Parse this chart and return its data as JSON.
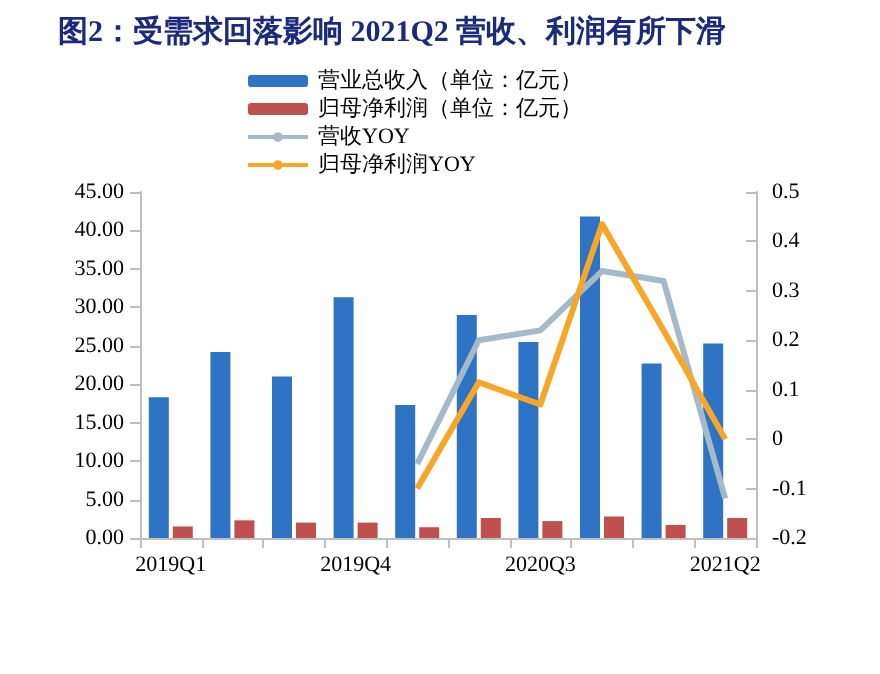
{
  "chart_data": {
    "type": "bar",
    "title": "图2：受需求回落影响 2021Q2 营收、利润有所下滑",
    "categories": [
      "2019Q1",
      null,
      null,
      "2019Q4",
      null,
      null,
      "2020Q3",
      null,
      null,
      "2021Q2"
    ],
    "series": [
      {
        "name": "营业总收入（单位：亿元）",
        "color": "#2e73c4",
        "values": [
          18.3,
          24.2,
          21.0,
          31.3,
          17.3,
          29.0,
          25.5,
          41.8,
          22.7,
          25.3
        ]
      },
      {
        "name": "归母净利润（单位：亿元）",
        "color": "#c0504d",
        "values": [
          1.5,
          2.3,
          2.0,
          2.0,
          1.4,
          2.6,
          2.2,
          2.8,
          1.7,
          2.6
        ]
      },
      {
        "name": "营收YOY",
        "type": "line",
        "axis": "y2",
        "color": "#a5b9c9",
        "values": [
          null,
          null,
          null,
          null,
          -0.05,
          0.2,
          0.22,
          0.34,
          0.32,
          -0.12
        ]
      },
      {
        "name": "归母净利润YOY",
        "type": "line",
        "axis": "y2",
        "color": "#f7a628",
        "values": [
          null,
          null,
          null,
          null,
          -0.1,
          0.115,
          0.07,
          0.435,
          0.22,
          0.0
        ]
      }
    ],
    "ylim": [
      0,
      45
    ],
    "yticks": [
      {
        "value": 0,
        "label": "0.00"
      },
      {
        "value": 5,
        "label": "5.00"
      },
      {
        "value": 10,
        "label": "10.00"
      },
      {
        "value": 15,
        "label": "15.00"
      },
      {
        "value": 20,
        "label": "20.00"
      },
      {
        "value": 25,
        "label": "25.00"
      },
      {
        "value": 30,
        "label": "30.00"
      },
      {
        "value": 35,
        "label": "35.00"
      },
      {
        "value": 40,
        "label": "40.00"
      },
      {
        "value": 45,
        "label": "45.00"
      }
    ],
    "y2lim": [
      -0.2,
      0.5
    ],
    "y2ticks": [
      -0.2,
      -0.1,
      0,
      0.1,
      0.2,
      0.3,
      0.4,
      0.5
    ],
    "legend": "top",
    "grid": false,
    "marker": "none",
    "line_style": "solid"
  }
}
